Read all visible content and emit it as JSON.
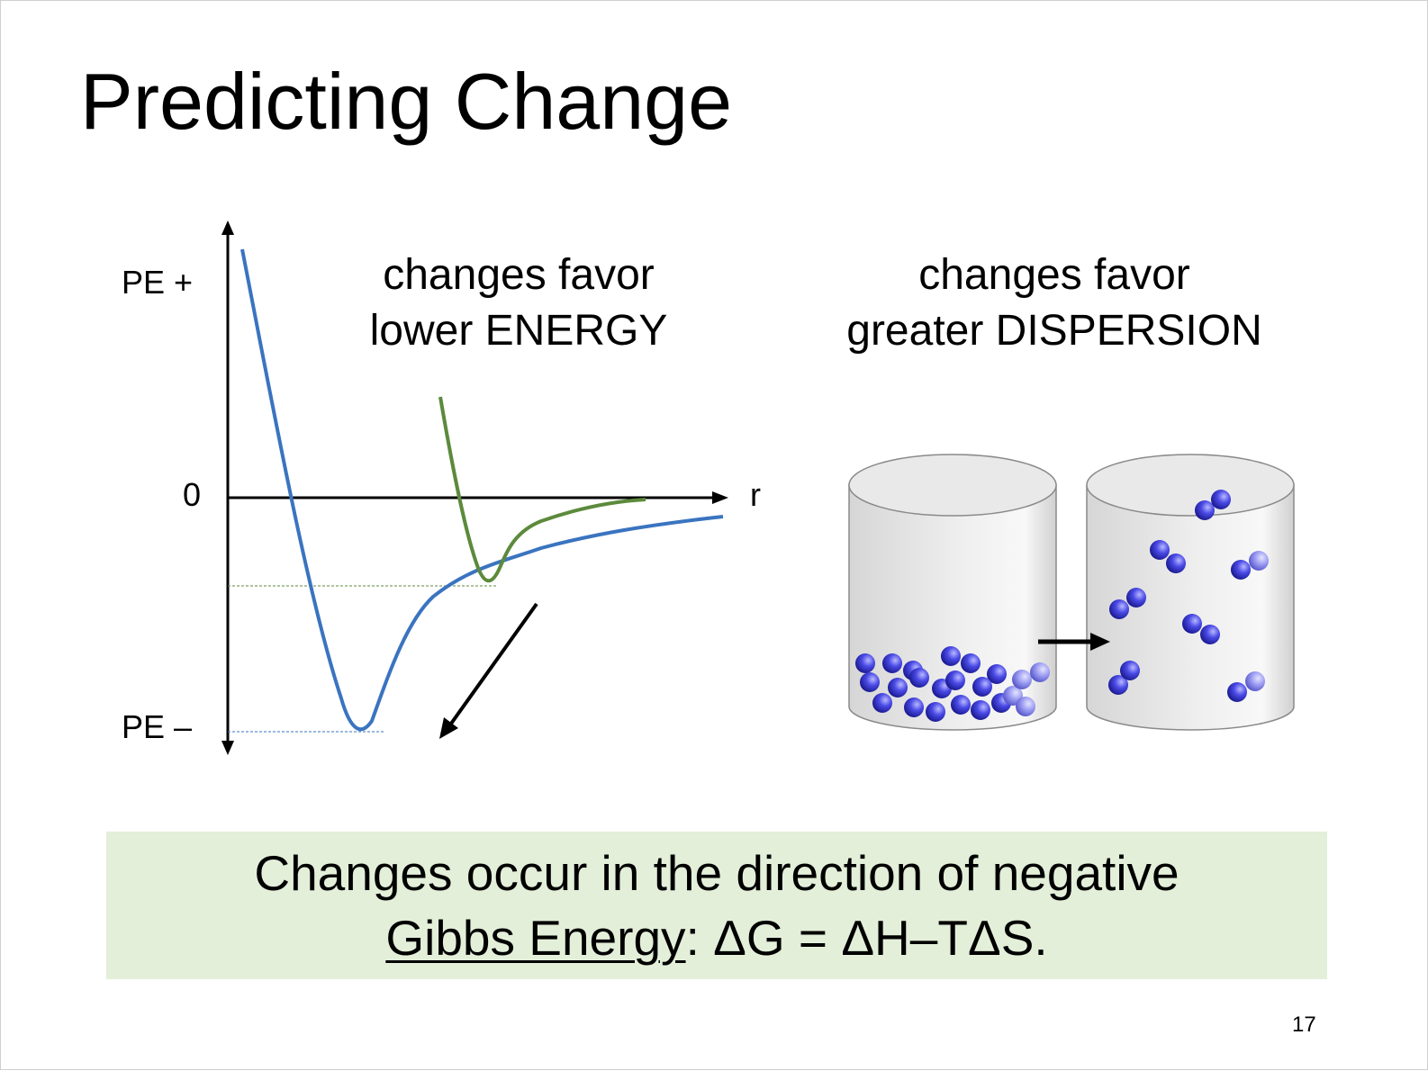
{
  "slide": {
    "title": "Predicting Change",
    "page_number": "17"
  },
  "graph": {
    "y_top_label": "PE +",
    "y_zero_label": "0",
    "y_bottom_label": "PE –",
    "x_label": "r",
    "curve_colors": {
      "blue": "#3a74c0",
      "green": "#5c8a3c"
    }
  },
  "captions": {
    "energy": [
      "changes favor",
      "lower ENERGY"
    ],
    "dispersion": [
      "changes favor",
      "greater DISPERSION"
    ]
  },
  "summary": {
    "line1": "Changes occur in the direction of negative",
    "term": "Gibbs Energy",
    "rest": ": ΔG = ΔH–TΔS.",
    "background": "#e3efd9"
  }
}
